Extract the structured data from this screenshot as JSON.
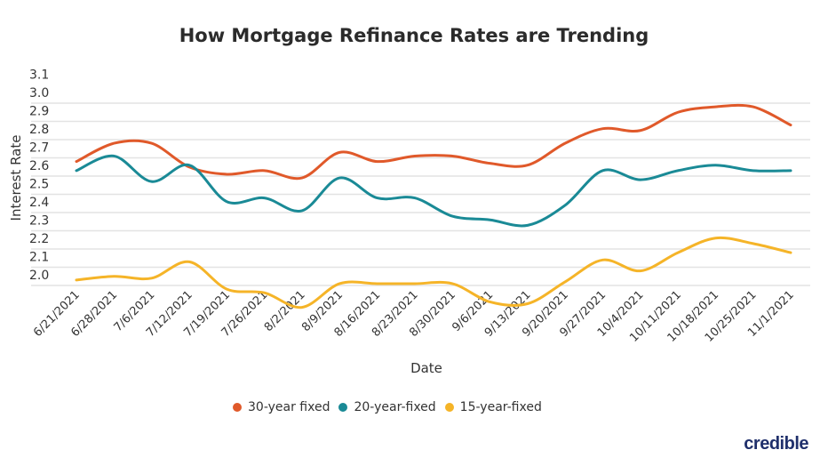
{
  "chart_data": {
    "type": "line",
    "title": "How Mortgage Refinance Rates are Trending",
    "xlabel": "Date",
    "ylabel": "Interest Rate",
    "ylim": [
      2.0,
      3.1
    ],
    "yticks": [
      "2.0",
      "2.1",
      "2.2",
      "2.3",
      "2.4",
      "2.5",
      "2.6",
      "2.7",
      "2.8",
      "2.9",
      "3.0",
      "3.1"
    ],
    "grid": true,
    "legend_position": "bottom",
    "categories": [
      "6/21/2021",
      "6/28/2021",
      "7/6/2021",
      "7/12/2021",
      "7/19/2021",
      "7/26/2021",
      "8/2/2021",
      "8/9/2021",
      "8/16/2021",
      "8/23/2021",
      "8/30/2021",
      "9/6/2021",
      "9/13/2021",
      "9/20/2021",
      "9/27/2021",
      "10/4/2021",
      "10/11/2021",
      "10/18/2021",
      "10/25/2021",
      "11/1/2021"
    ],
    "series": [
      {
        "name": "30-year fixed",
        "color": "#e0592a",
        "values": [
          2.68,
          2.78,
          2.78,
          2.65,
          2.61,
          2.63,
          2.59,
          2.73,
          2.68,
          2.71,
          2.71,
          2.67,
          2.66,
          2.78,
          2.86,
          2.85,
          2.95,
          2.98,
          2.98,
          2.88
        ]
      },
      {
        "name": "20-year-fixed",
        "color": "#1a8a96",
        "values": [
          2.63,
          2.71,
          2.57,
          2.66,
          2.46,
          2.48,
          2.41,
          2.59,
          2.48,
          2.48,
          2.38,
          2.36,
          2.33,
          2.44,
          2.63,
          2.58,
          2.63,
          2.66,
          2.63,
          2.63
        ]
      },
      {
        "name": "15-year-fixed",
        "color": "#f5b428",
        "values": [
          2.03,
          2.05,
          2.04,
          2.13,
          1.98,
          1.96,
          1.88,
          2.01,
          2.01,
          2.01,
          2.01,
          1.91,
          1.9,
          2.02,
          2.14,
          2.08,
          2.18,
          2.26,
          2.23,
          2.18
        ]
      }
    ]
  },
  "logo": "credible"
}
